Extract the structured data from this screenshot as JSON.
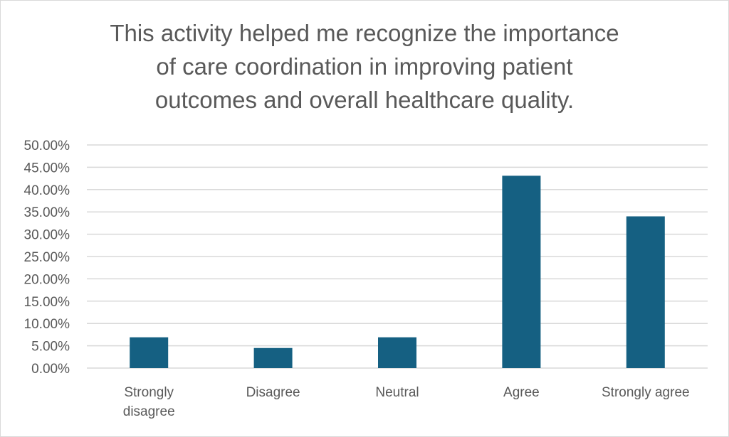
{
  "chart_data": {
    "type": "bar",
    "title_lines": [
      "This activity helped me recognize the importance",
      "of care coordination in improving patient",
      "outcomes and overall healthcare quality."
    ],
    "categories": [
      [
        "Strongly",
        "disagree"
      ],
      [
        "Disagree"
      ],
      [
        "Neutral"
      ],
      [
        "Agree"
      ],
      [
        "Strongly agree"
      ]
    ],
    "values": [
      0.069,
      0.045,
      0.069,
      0.431,
      0.34
    ],
    "ylim": [
      0,
      0.5
    ],
    "y_ticks": [
      0,
      0.05,
      0.1,
      0.15,
      0.2,
      0.25,
      0.3,
      0.35,
      0.4,
      0.45,
      0.5
    ],
    "y_tick_labels": [
      "0.00%",
      "5.00%",
      "10.00%",
      "15.00%",
      "20.00%",
      "25.00%",
      "30.00%",
      "35.00%",
      "40.00%",
      "45.00%",
      "50.00%"
    ],
    "grid": true,
    "legend": "none",
    "bar_color": "#156082",
    "grid_color": "#d9d9d9"
  }
}
